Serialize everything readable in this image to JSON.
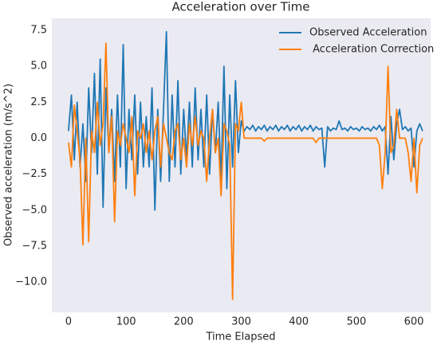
{
  "chart_data": {
    "type": "line",
    "title": "Acceleration over Time",
    "x_label": "Time Elapsed",
    "y_label": "Observed acceleration (m/s^2)",
    "x": [
      0,
      5,
      10,
      15,
      20,
      25,
      30,
      35,
      40,
      45,
      50,
      55,
      60,
      65,
      70,
      75,
      80,
      85,
      90,
      95,
      100,
      105,
      110,
      115,
      120,
      125,
      130,
      135,
      140,
      145,
      150,
      155,
      160,
      165,
      170,
      175,
      180,
      185,
      190,
      195,
      200,
      205,
      210,
      215,
      220,
      225,
      230,
      235,
      240,
      245,
      250,
      255,
      260,
      265,
      270,
      275,
      280,
      285,
      290,
      295,
      300,
      305,
      310,
      315,
      320,
      325,
      330,
      335,
      340,
      345,
      350,
      355,
      360,
      365,
      370,
      375,
      380,
      385,
      390,
      395,
      400,
      405,
      410,
      415,
      420,
      425,
      430,
      435,
      440,
      445,
      450,
      455,
      460,
      465,
      470,
      475,
      480,
      485,
      490,
      495,
      500,
      505,
      510,
      515,
      520,
      525,
      530,
      535,
      540,
      545,
      550,
      555,
      560,
      565,
      570,
      575,
      580,
      585,
      590,
      595,
      600,
      605,
      610,
      615
    ],
    "series": [
      {
        "name": "Observed Acceleration",
        "color": "#1f77b4",
        "values": [
          0.5,
          3,
          -1.5,
          2.5,
          -2,
          1,
          -3,
          3.5,
          -1,
          4.5,
          -2.5,
          5.5,
          -4.8,
          3.5,
          -1,
          2,
          -3,
          3,
          -2,
          6.5,
          -3.5,
          2,
          -1.5,
          3,
          -2.5,
          2.5,
          -2,
          1.5,
          -2,
          3.5,
          -5,
          2,
          -3,
          2,
          7.4,
          -3,
          3,
          -2,
          4,
          -2.5,
          2,
          -1.5,
          2.5,
          -2,
          3.5,
          -1.5,
          2,
          -2,
          3,
          -2.5,
          2,
          -1,
          2.5,
          -3,
          5,
          -3.5,
          3,
          -2,
          4,
          -1,
          1.2,
          0.5,
          0.8,
          0.6,
          0.9,
          0.5,
          0.8,
          0.6,
          0.9,
          0.5,
          0.8,
          0.6,
          0.9,
          0.5,
          0.8,
          0.6,
          0.9,
          0.5,
          0.8,
          0.6,
          0.9,
          0.5,
          0.8,
          0.6,
          0.9,
          0.5,
          0.8,
          0.6,
          0.7,
          -2,
          0.8,
          0.5,
          0.7,
          0.6,
          1.2,
          0.6,
          0.7,
          0.5,
          0.8,
          0.6,
          0.7,
          0.5,
          0.8,
          0.6,
          0.7,
          0.5,
          0.8,
          0.6,
          0.9,
          0.5,
          0.8,
          -2.5,
          1.5,
          -1.5,
          1,
          2,
          0.6,
          0.8,
          0.5,
          0.7,
          -2,
          0.5,
          1,
          0.5
        ]
      },
      {
        "name": " Acceleration Correction",
        "color": "#ff7f0e",
        "values": [
          -0.3,
          -2,
          2.3,
          0.5,
          -1.5,
          -7.4,
          0,
          -7.2,
          0.5,
          -1,
          2.5,
          -0.5,
          1,
          6.6,
          -1,
          1.5,
          -5.8,
          0.5,
          -0.5,
          1,
          0,
          -1,
          1.5,
          -4,
          0.5,
          0,
          1,
          -1,
          0.5,
          -1.5,
          0.5,
          1.5,
          -2,
          1,
          0,
          -1,
          -1.5,
          0.5,
          1,
          -1.5,
          0,
          -2,
          1,
          -0.5,
          1.5,
          -0.5,
          0.5,
          0,
          -3,
          0,
          2,
          -1,
          0,
          -4,
          1,
          0.5,
          -0.5,
          -11.2,
          1,
          0.5,
          2.5,
          0,
          0,
          0,
          0,
          0,
          0,
          0,
          -0.2,
          0,
          0,
          0,
          0,
          0,
          0,
          0,
          0,
          0,
          0,
          0,
          0,
          0,
          0,
          0,
          0,
          0,
          -0.3,
          0,
          0,
          0,
          0,
          0,
          0,
          0,
          0,
          0,
          0,
          0,
          0,
          0,
          0,
          0,
          0,
          0,
          0,
          0,
          0,
          0,
          -0.5,
          -3.5,
          -1,
          5,
          -1,
          -0.5,
          2,
          0,
          0,
          0,
          -1,
          -3,
          0,
          -3.8,
          -0.5,
          0
        ]
      }
    ],
    "xlim": [
      -29,
      629
    ],
    "ylim": [
      -12.1,
      8.33
    ],
    "xticks": [
      0,
      100,
      200,
      300,
      400,
      500,
      600
    ],
    "yticks": [
      {
        "value": -10,
        "label": "−10.0"
      },
      {
        "value": -7.5,
        "label": "−7.5"
      },
      {
        "value": -5,
        "label": "−5.0"
      },
      {
        "value": -2.5,
        "label": "−2.5"
      },
      {
        "value": 0,
        "label": "0.0"
      },
      2.5,
      {
        "value": 5,
        "label": "5.0"
      },
      7.5
    ],
    "grid": false,
    "legend": "upper right"
  }
}
